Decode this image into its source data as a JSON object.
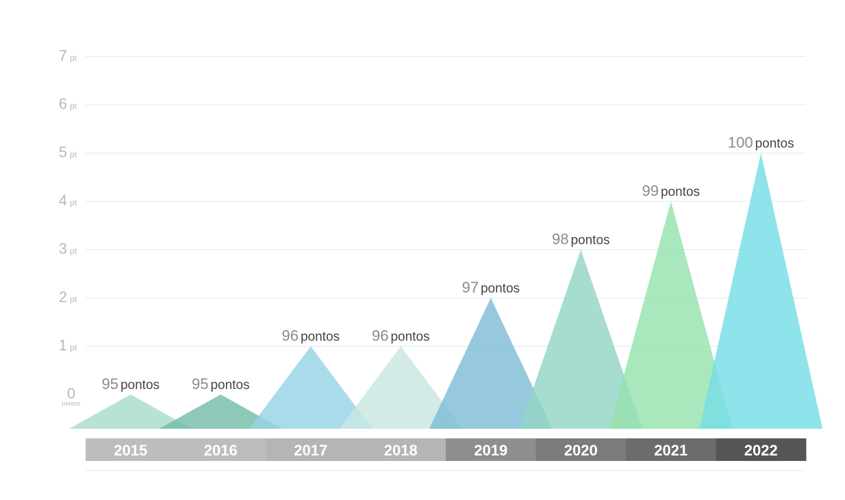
{
  "chart_data": {
    "type": "bar",
    "mark_shape": "triangle",
    "categories": [
      "2015",
      "2016",
      "2017",
      "2018",
      "2019",
      "2020",
      "2021",
      "2022"
    ],
    "values": [
      0,
      0,
      1,
      1,
      2,
      3,
      4,
      5
    ],
    "data_labels": [
      {
        "number": "95",
        "unit": "pontos"
      },
      {
        "number": "95",
        "unit": "pontos"
      },
      {
        "number": "96",
        "unit": "pontos"
      },
      {
        "number": "96",
        "unit": "pontos"
      },
      {
        "number": "97",
        "unit": "pontos"
      },
      {
        "number": "98",
        "unit": "pontos"
      },
      {
        "number": "99",
        "unit": "pontos"
      },
      {
        "number": "100",
        "unit": "pontos"
      }
    ],
    "y_ticks": [
      {
        "value": 0,
        "number": "0",
        "unit": "pontos"
      },
      {
        "value": 1,
        "number": "1",
        "unit": "pt"
      },
      {
        "value": 2,
        "number": "2",
        "unit": "pt"
      },
      {
        "value": 3,
        "number": "3",
        "unit": "pt"
      },
      {
        "value": 4,
        "number": "4",
        "unit": "pt"
      },
      {
        "value": 5,
        "number": "5",
        "unit": "pt"
      },
      {
        "value": 6,
        "number": "6",
        "unit": "pt"
      },
      {
        "value": 7,
        "number": "7",
        "unit": "pt"
      }
    ],
    "ylim": [
      0,
      7
    ],
    "grid": true,
    "title": "",
    "xlabel": "",
    "ylabel": "",
    "mark_colors": [
      "#a8dccb",
      "#74bca8",
      "#96d4e6",
      "#c8e6e1",
      "#7fbdd5",
      "#94d6c6",
      "#96e2ae",
      "#76dde6"
    ],
    "year_band_colors": [
      "#bdbdbd",
      "#bdbdbd",
      "#b5b5b5",
      "#b5b5b5",
      "#8e8e8e",
      "#7b7b7b",
      "#6c6c6c",
      "#555555"
    ]
  }
}
